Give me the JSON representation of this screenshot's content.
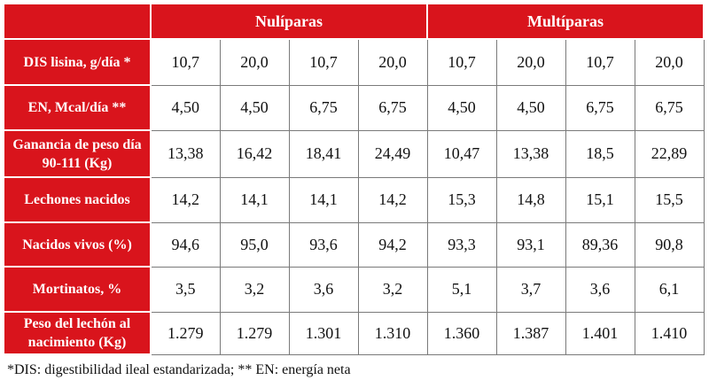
{
  "table": {
    "groups": [
      "Nulíparas",
      "Multíparas"
    ],
    "rows": [
      {
        "label": "DIS lisina, g/día *",
        "values": [
          "10,7",
          "20,0",
          "10,7",
          "20,0",
          "10,7",
          "20,0",
          "10,7",
          "20,0"
        ]
      },
      {
        "label": "EN, Mcal/día **",
        "values": [
          "4,50",
          "4,50",
          "6,75",
          "6,75",
          "4,50",
          "4,50",
          "6,75",
          "6,75"
        ]
      },
      {
        "label": "Ganancia de peso día 90-111 (Kg)",
        "values": [
          "13,38",
          "16,42",
          "18,41",
          "24,49",
          "10,47",
          "13,38",
          "18,5",
          "22,89"
        ]
      },
      {
        "label": "Lechones nacidos",
        "values": [
          "14,2",
          "14,1",
          "14,1",
          "14,2",
          "15,3",
          "14,8",
          "15,1",
          "15,5"
        ]
      },
      {
        "label": "Nacidos vivos (%)",
        "values": [
          "94,6",
          "95,0",
          "93,6",
          "94,2",
          "93,3",
          "93,1",
          "89,36",
          "90,8"
        ]
      },
      {
        "label": "Mortinatos, %",
        "values": [
          "3,5",
          "3,2",
          "3,6",
          "3,2",
          "5,1",
          "3,7",
          "3,6",
          "6,1"
        ]
      },
      {
        "label": "Peso del lechón al nacimiento (Kg)",
        "values": [
          "1.279",
          "1.279",
          "1.301",
          "1.310",
          "1.360",
          "1.387",
          "1.401",
          "1.410"
        ]
      }
    ]
  },
  "footnote": "*DIS: digestibilidad ileal estandarizada; ** EN: energía neta"
}
